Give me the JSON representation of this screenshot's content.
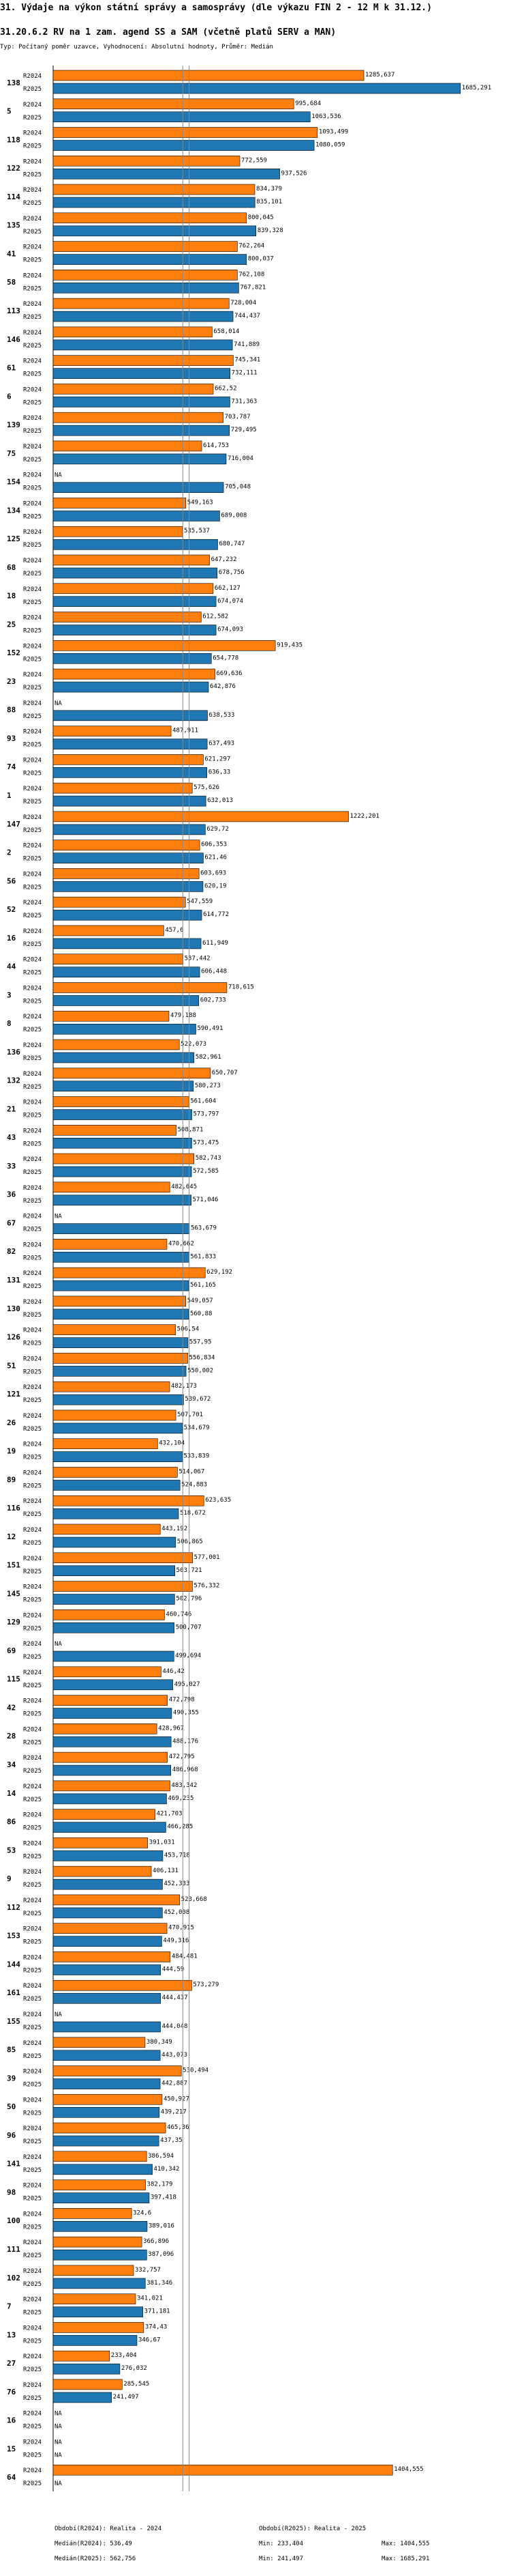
{
  "title": "31. Výdaje na výkon státní správy a samosprávy (dle výkazu FIN 2 - 12 M k 31.12.)",
  "subtitle": "31.20.6.2 RV na 1 zam. agend SS a SAM (včetně platů SERV a MAN)",
  "note": "Typ: Počítaný poměr uzavce, Vyhodnocení: Absolutní hodnoty, Průměr: Medián",
  "colors": {
    "r2024": "#ff7f0e",
    "r2025": "#1f77b4",
    "median_line": "#888888"
  },
  "chart_data": {
    "type": "bar",
    "orientation": "horizontal",
    "series": [
      {
        "name": "R2024",
        "label": "R2024"
      },
      {
        "name": "R2025",
        "label": "R2025"
      }
    ],
    "na_label": "NA",
    "xlim": [
      0,
      1700000
    ],
    "medians": [
      536490,
      562756
    ],
    "groups": [
      {
        "id": "138",
        "r2024": 1285637,
        "r2024_label": "1285,637",
        "r2025": 1685291,
        "r2025_label": "1685,291"
      },
      {
        "id": "5",
        "r2024": 995684,
        "r2024_label": "995,684",
        "r2025": 1063536,
        "r2025_label": "1063,536"
      },
      {
        "id": "118",
        "r2024": 1093499,
        "r2024_label": "1093,499",
        "r2025": 1080059,
        "r2025_label": "1080,059"
      },
      {
        "id": "122",
        "r2024": 772559,
        "r2024_label": "772,559",
        "r2025": 937526,
        "r2025_label": "937,526"
      },
      {
        "id": "114",
        "r2024": 834379,
        "r2024_label": "834,379",
        "r2025": 835101,
        "r2025_label": "835,101"
      },
      {
        "id": "135",
        "r2024": 800045,
        "r2024_label": "800,045",
        "r2025": 839328,
        "r2025_label": "839,328"
      },
      {
        "id": "41",
        "r2024": 762264,
        "r2024_label": "762,264",
        "r2025": 800037,
        "r2025_label": "800,037"
      },
      {
        "id": "58",
        "r2024": 762108,
        "r2024_label": "762,108",
        "r2025": 767821,
        "r2025_label": "767,821"
      },
      {
        "id": "113",
        "r2024": 728004,
        "r2024_label": "728,004",
        "r2025": 744437,
        "r2025_label": "744,437"
      },
      {
        "id": "146",
        "r2024": 658014,
        "r2024_label": "658,014",
        "r2025": 741889,
        "r2025_label": "741,889"
      },
      {
        "id": "61",
        "r2024": 745341,
        "r2024_label": "745,341",
        "r2025": 732111,
        "r2025_label": "732,111"
      },
      {
        "id": "6",
        "r2024": 662520,
        "r2024_label": "662,52",
        "r2025": 731363,
        "r2025_label": "731,363"
      },
      {
        "id": "139",
        "r2024": 703787,
        "r2024_label": "703,787",
        "r2025": 729495,
        "r2025_label": "729,495"
      },
      {
        "id": "75",
        "r2024": 614753,
        "r2024_label": "614,753",
        "r2025": 716004,
        "r2025_label": "716,004"
      },
      {
        "id": "154",
        "r2024": null,
        "r2024_label": "NA",
        "r2025": 705048,
        "r2025_label": "705,048"
      },
      {
        "id": "134",
        "r2024": 549163,
        "r2024_label": "549,163",
        "r2025": 689008,
        "r2025_label": "689,008"
      },
      {
        "id": "125",
        "r2024": 535537,
        "r2024_label": "535,537",
        "r2025": 680747,
        "r2025_label": "680,747"
      },
      {
        "id": "68",
        "r2024": 647232,
        "r2024_label": "647,232",
        "r2025": 678756,
        "r2025_label": "678,756"
      },
      {
        "id": "18",
        "r2024": 662127,
        "r2024_label": "662,127",
        "r2025": 674074,
        "r2025_label": "674,074"
      },
      {
        "id": "25",
        "r2024": 612582,
        "r2024_label": "612,582",
        "r2025": 674093,
        "r2025_label": "674,093"
      },
      {
        "id": "152",
        "r2024": 919435,
        "r2024_label": "919,435",
        "r2025": 654778,
        "r2025_label": "654,778"
      },
      {
        "id": "23",
        "r2024": 669636,
        "r2024_label": "669,636",
        "r2025": 642876,
        "r2025_label": "642,876"
      },
      {
        "id": "88",
        "r2024": null,
        "r2024_label": "NA",
        "r2025": 638533,
        "r2025_label": "638,533"
      },
      {
        "id": "93",
        "r2024": 487911,
        "r2024_label": "487,911",
        "r2025": 637493,
        "r2025_label": "637,493"
      },
      {
        "id": "74",
        "r2024": 621297,
        "r2024_label": "621,297",
        "r2025": 636330,
        "r2025_label": "636,33"
      },
      {
        "id": "1",
        "r2024": 575626,
        "r2024_label": "575,626",
        "r2025": 632013,
        "r2025_label": "632,013"
      },
      {
        "id": "147",
        "r2024": 1222201,
        "r2024_label": "1222,201",
        "r2025": 629720,
        "r2025_label": "629,72"
      },
      {
        "id": "2",
        "r2024": 606353,
        "r2024_label": "606,353",
        "r2025": 621460,
        "r2025_label": "621,46"
      },
      {
        "id": "56",
        "r2024": 603693,
        "r2024_label": "603,693",
        "r2025": 620190,
        "r2025_label": "620,19"
      },
      {
        "id": "52",
        "r2024": 547559,
        "r2024_label": "547,559",
        "r2025": 614772,
        "r2025_label": "614,772"
      },
      {
        "id": "16",
        "r2024": 457600,
        "r2024_label": "457,6",
        "r2025": 611949,
        "r2025_label": "611,949"
      },
      {
        "id": "44",
        "r2024": 537442,
        "r2024_label": "537,442",
        "r2025": 606448,
        "r2025_label": "606,448"
      },
      {
        "id": "3",
        "r2024": 718615,
        "r2024_label": "718,615",
        "r2025": 602733,
        "r2025_label": "602,733"
      },
      {
        "id": "8",
        "r2024": 479188,
        "r2024_label": "479,188",
        "r2025": 590491,
        "r2025_label": "590,491"
      },
      {
        "id": "136",
        "r2024": 522073,
        "r2024_label": "522,073",
        "r2025": 582961,
        "r2025_label": "582,961"
      },
      {
        "id": "132",
        "r2024": 650707,
        "r2024_label": "650,707",
        "r2025": 580273,
        "r2025_label": "580,273"
      },
      {
        "id": "21",
        "r2024": 561604,
        "r2024_label": "561,604",
        "r2025": 573797,
        "r2025_label": "573,797"
      },
      {
        "id": "43",
        "r2024": 508871,
        "r2024_label": "508,871",
        "r2025": 573475,
        "r2025_label": "573,475"
      },
      {
        "id": "33",
        "r2024": 582743,
        "r2024_label": "582,743",
        "r2025": 572585,
        "r2025_label": "572,585"
      },
      {
        "id": "36",
        "r2024": 482645,
        "r2024_label": "482,645",
        "r2025": 571046,
        "r2025_label": "571,046"
      },
      {
        "id": "67",
        "r2024": null,
        "r2024_label": "NA",
        "r2025": 563679,
        "r2025_label": "563,679"
      },
      {
        "id": "82",
        "r2024": 470662,
        "r2024_label": "470,662",
        "r2025": 561833,
        "r2025_label": "561,833"
      },
      {
        "id": "131",
        "r2024": 629192,
        "r2024_label": "629,192",
        "r2025": 561165,
        "r2025_label": "561,165"
      },
      {
        "id": "130",
        "r2024": 549057,
        "r2024_label": "549,057",
        "r2025": 560880,
        "r2025_label": "560,88"
      },
      {
        "id": "126",
        "r2024": 506540,
        "r2024_label": "506,54",
        "r2025": 557950,
        "r2025_label": "557,95"
      },
      {
        "id": "51",
        "r2024": 556834,
        "r2024_label": "556,834",
        "r2025": 550002,
        "r2025_label": "550,002"
      },
      {
        "id": "121",
        "r2024": 482173,
        "r2024_label": "482,173",
        "r2025": 539672,
        "r2025_label": "539,672"
      },
      {
        "id": "26",
        "r2024": 507701,
        "r2024_label": "507,701",
        "r2025": 534679,
        "r2025_label": "534,679"
      },
      {
        "id": "19",
        "r2024": 432104,
        "r2024_label": "432,104",
        "r2025": 533839,
        "r2025_label": "533,839"
      },
      {
        "id": "89",
        "r2024": 514067,
        "r2024_label": "514,067",
        "r2025": 524883,
        "r2025_label": "524,883"
      },
      {
        "id": "116",
        "r2024": 623635,
        "r2024_label": "623,635",
        "r2025": 518672,
        "r2025_label": "518,672"
      },
      {
        "id": "12",
        "r2024": 443192,
        "r2024_label": "443,192",
        "r2025": 506865,
        "r2025_label": "506,865"
      },
      {
        "id": "151",
        "r2024": 577001,
        "r2024_label": "577,001",
        "r2025": 503721,
        "r2025_label": "503,721"
      },
      {
        "id": "145",
        "r2024": 576332,
        "r2024_label": "576,332",
        "r2025": 502796,
        "r2025_label": "502,796"
      },
      {
        "id": "129",
        "r2024": 460746,
        "r2024_label": "460,746",
        "r2025": 500707,
        "r2025_label": "500,707"
      },
      {
        "id": "69",
        "r2024": null,
        "r2024_label": "NA",
        "r2025": 499694,
        "r2025_label": "499,694"
      },
      {
        "id": "115",
        "r2024": 446420,
        "r2024_label": "446,42",
        "r2025": 495027,
        "r2025_label": "495,027"
      },
      {
        "id": "42",
        "r2024": 472798,
        "r2024_label": "472,798",
        "r2025": 490355,
        "r2025_label": "490,355"
      },
      {
        "id": "28",
        "r2024": 428967,
        "r2024_label": "428,967",
        "r2025": 488176,
        "r2025_label": "488,176"
      },
      {
        "id": "34",
        "r2024": 472795,
        "r2024_label": "472,795",
        "r2025": 486968,
        "r2025_label": "486,968"
      },
      {
        "id": "14",
        "r2024": 483342,
        "r2024_label": "483,342",
        "r2025": 469235,
        "r2025_label": "469,235"
      },
      {
        "id": "86",
        "r2024": 421703,
        "r2024_label": "421,703",
        "r2025": 466285,
        "r2025_label": "466,285"
      },
      {
        "id": "53",
        "r2024": 391031,
        "r2024_label": "391,031",
        "r2025": 453718,
        "r2025_label": "453,718"
      },
      {
        "id": "9",
        "r2024": 406131,
        "r2024_label": "406,131",
        "r2025": 452333,
        "r2025_label": "452,333"
      },
      {
        "id": "112",
        "r2024": 523668,
        "r2024_label": "523,668",
        "r2025": 452008,
        "r2025_label": "452,008"
      },
      {
        "id": "153",
        "r2024": 470915,
        "r2024_label": "470,915",
        "r2025": 449316,
        "r2025_label": "449,316"
      },
      {
        "id": "144",
        "r2024": 484481,
        "r2024_label": "484,481",
        "r2025": 444590,
        "r2025_label": "444,59"
      },
      {
        "id": "161",
        "r2024": 573279,
        "r2024_label": "573,279",
        "r2025": 444437,
        "r2025_label": "444,437"
      },
      {
        "id": "155",
        "r2024": null,
        "r2024_label": "NA",
        "r2025": 444048,
        "r2025_label": "444,048"
      },
      {
        "id": "85",
        "r2024": 380349,
        "r2024_label": "380,349",
        "r2025": 443073,
        "r2025_label": "443,073"
      },
      {
        "id": "39",
        "r2024": 530494,
        "r2024_label": "530,494",
        "r2025": 442887,
        "r2025_label": "442,887"
      },
      {
        "id": "50",
        "r2024": 450927,
        "r2024_label": "450,927",
        "r2025": 439217,
        "r2025_label": "439,217"
      },
      {
        "id": "96",
        "r2024": 465360,
        "r2024_label": "465,36",
        "r2025": 437350,
        "r2025_label": "437,35"
      },
      {
        "id": "141",
        "r2024": 386594,
        "r2024_label": "386,594",
        "r2025": 410342,
        "r2025_label": "410,342"
      },
      {
        "id": "98",
        "r2024": 382179,
        "r2024_label": "382,179",
        "r2025": 397418,
        "r2025_label": "397,418"
      },
      {
        "id": "100",
        "r2024": 324600,
        "r2024_label": "324,6",
        "r2025": 389016,
        "r2025_label": "389,016"
      },
      {
        "id": "111",
        "r2024": 366896,
        "r2024_label": "366,896",
        "r2025": 387096,
        "r2025_label": "387,096"
      },
      {
        "id": "102",
        "r2024": 332757,
        "r2024_label": "332,757",
        "r2025": 381346,
        "r2025_label": "381,346"
      },
      {
        "id": "7",
        "r2024": 341021,
        "r2024_label": "341,021",
        "r2025": 371181,
        "r2025_label": "371,181"
      },
      {
        "id": "13",
        "r2024": 374430,
        "r2024_label": "374,43",
        "r2025": 346670,
        "r2025_label": "346,67"
      },
      {
        "id": "27",
        "r2024": 233404,
        "r2024_label": "233,404",
        "r2025": 276032,
        "r2025_label": "276,032"
      },
      {
        "id": "76",
        "r2024": 285545,
        "r2024_label": "285,545",
        "r2025": 241497,
        "r2025_label": "241,497"
      },
      {
        "id": "16",
        "r2024": null,
        "r2024_label": "NA",
        "r2025": null,
        "r2025_label": "NA"
      },
      {
        "id": "15",
        "r2024": null,
        "r2024_label": "NA",
        "r2025": null,
        "r2025_label": "NA"
      },
      {
        "id": "64",
        "r2024": 1404555,
        "r2024_label": "1404,555",
        "r2025": null,
        "r2025_label": "NA"
      }
    ]
  },
  "footer": {
    "col1": {
      "line1": "Období(R2024): Realita - 2024",
      "line2": "Medián(R2024): 536,49"
    },
    "col2": {
      "line1": "Období(R2025): Realita - 2025",
      "line2": "Medián(R2025): 562,756"
    },
    "col3": {
      "min_2024": "Min: 233,404",
      "min_2025": "Min: 241,497"
    },
    "col4": {
      "max_2024": "Max: 1404,555",
      "max_2025": "Max: 1685,291"
    }
  }
}
